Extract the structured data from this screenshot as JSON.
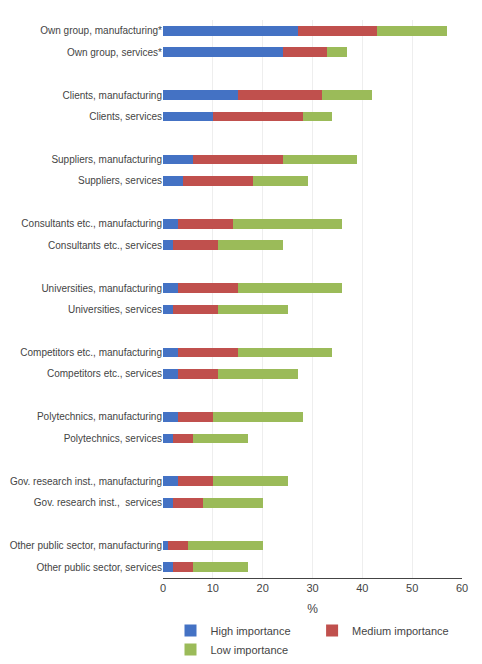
{
  "chart_data": {
    "type": "bar",
    "orientation": "horizontal",
    "stacked": true,
    "categories": [
      "Own group, manufacturing*",
      "Own group, services*",
      null,
      "Clients, manufacturing",
      "Clients, services",
      null,
      "Suppliers, manufacturing",
      "Suppliers, services",
      null,
      "Consultants etc., manufacturing",
      "Consultants etc., services",
      null,
      "Universities, manufacturing",
      "Universities, services",
      null,
      "Competitors etc., manufacturing",
      "Competitors etc., services",
      null,
      "Polytechnics, manufacturing",
      "Polytechnics, services",
      null,
      "Gov. research inst., manufacturing",
      "Gov. research inst.,  services",
      null,
      "Other public sector, manufacturing",
      "Other public sector, services"
    ],
    "series": [
      {
        "name": "High importance",
        "color": "#4472c4",
        "values": [
          27,
          24,
          0,
          15,
          10,
          0,
          6,
          4,
          0,
          3,
          2,
          0,
          3,
          2,
          0,
          3,
          3,
          0,
          3,
          2,
          0,
          3,
          2,
          0,
          1,
          2
        ]
      },
      {
        "name": "Medium importance",
        "color": "#c0504d",
        "values": [
          16,
          9,
          0,
          17,
          18,
          0,
          18,
          14,
          0,
          11,
          9,
          0,
          12,
          9,
          0,
          12,
          8,
          0,
          7,
          4,
          0,
          7,
          6,
          0,
          4,
          4
        ]
      },
      {
        "name": "Low importance",
        "color": "#9bbb59",
        "values": [
          14,
          4,
          0,
          10,
          6,
          0,
          15,
          11,
          0,
          22,
          13,
          0,
          21,
          14,
          0,
          19,
          16,
          0,
          18,
          11,
          0,
          15,
          12,
          0,
          15,
          11
        ]
      }
    ],
    "xlabel": "%",
    "xlim": [
      0,
      60
    ],
    "xticks": [
      0,
      10,
      20,
      30,
      40,
      50,
      60
    ],
    "grid": true,
    "legend": "bottom"
  }
}
